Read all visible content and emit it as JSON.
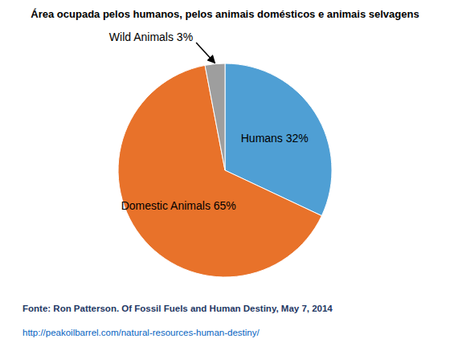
{
  "chart_data": {
    "type": "pie",
    "title": "Área ocupada pelos humanos, pelos animais domésticos e animais selvagens",
    "categories": [
      "Humans 32%",
      "Domestic Animals 65%",
      "Wild Animals 3%"
    ],
    "values": [
      32,
      65,
      3
    ],
    "colors": [
      "#4F9FD4",
      "#E8722A",
      "#9E9E9E"
    ],
    "annotations": [
      {
        "text": "Fonte: Ron Patterson. Of Fossil Fuels and Human Destiny,  May 7, 2014",
        "color": "#1F3864"
      },
      {
        "text": "http://peakoilbarrel.com/natural-resources-human-destiny/",
        "color": "#0563C1"
      }
    ]
  }
}
